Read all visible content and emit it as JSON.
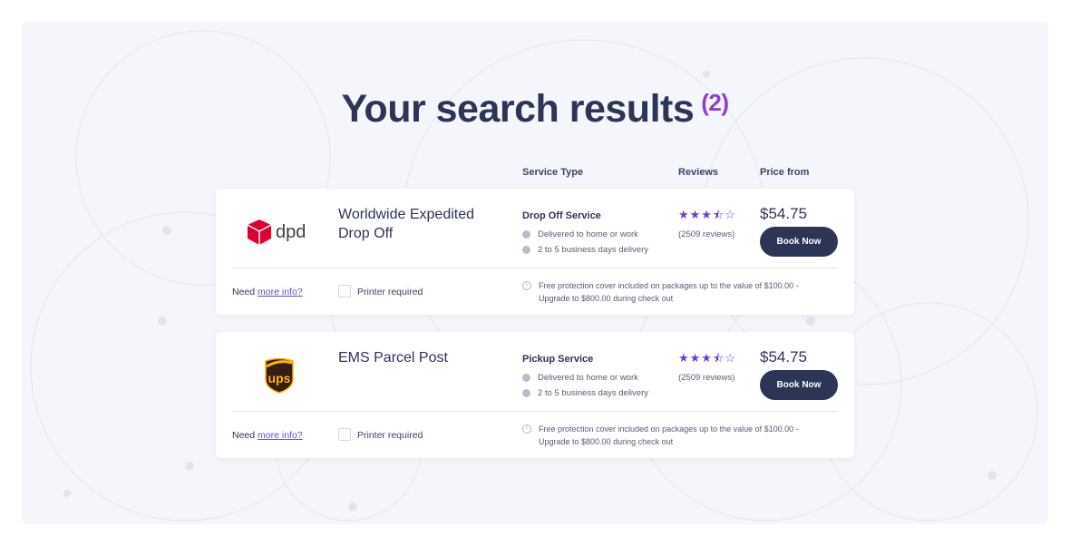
{
  "title": "Your search results",
  "count": "(2)",
  "headers": {
    "service_type": "Service Type",
    "reviews": "Reviews",
    "price": "Price from"
  },
  "colors": {
    "primary": "#2d3557",
    "accent": "#8e3fd6",
    "star": "#6b3fd6"
  },
  "results": [
    {
      "carrier": "dpd",
      "name": "Worldwide Expedited Drop Off",
      "service": "Drop Off Service",
      "features": [
        "Delivered to home or work",
        "2 to 5 business days delivery"
      ],
      "rating": 3.5,
      "stars": "★★★⯪☆",
      "reviews": "(2509 reviews)",
      "price": "$54.75",
      "book": "Book Now",
      "need": "Need",
      "more_info": "more info?",
      "printer": "Printer required",
      "protection": "Free protection cover included on packages up to the value of $100.00 - Upgrade to $800.00 during check out"
    },
    {
      "carrier": "ups",
      "name": "EMS Parcel Post",
      "service": "Pickup Service",
      "features": [
        "Delivered to home or work",
        "2 to 5 business days delivery"
      ],
      "rating": 3.5,
      "stars": "★★★⯪☆",
      "reviews": "(2509 reviews)",
      "price": "$54.75",
      "book": "Book Now",
      "need": "Need",
      "more_info": "more info?",
      "printer": "Printer required",
      "protection": "Free protection cover included on packages up to the value of $100.00 - Upgrade to $800.00 during check out"
    }
  ]
}
